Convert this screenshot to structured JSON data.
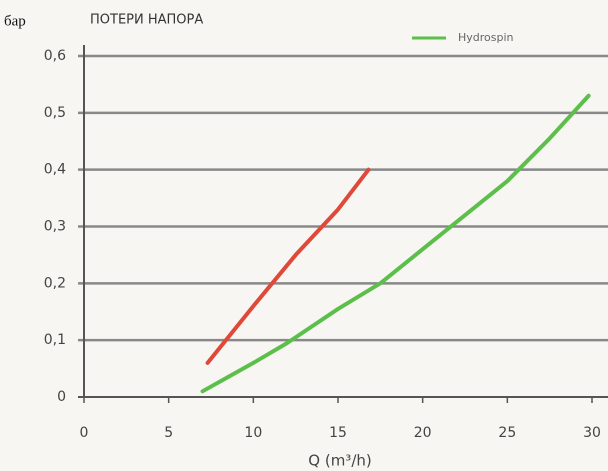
{
  "chart_data": {
    "type": "line",
    "title": "ПОТЕРИ НАПОРА",
    "ylabel": "бар",
    "xlabel": "Q  (m³/h)",
    "series": [
      {
        "color": "#e0483a",
        "x": [
          7.3,
          10,
          12.5,
          15,
          16.8
        ],
        "values": [
          0.06,
          0.16,
          0.25,
          0.33,
          0.4
        ]
      },
      {
        "name": "Hydrospin",
        "color": "#5cbf4a",
        "x": [
          7,
          10,
          12,
          15,
          17.5,
          20,
          22.5,
          25,
          27.5,
          29.8
        ],
        "values": [
          0.01,
          0.06,
          0.095,
          0.155,
          0.2,
          0.26,
          0.32,
          0.38,
          0.455,
          0.53
        ]
      }
    ],
    "xlim": [
      0,
      30
    ],
    "xticks": [
      0,
      5,
      10,
      15,
      20,
      25,
      30
    ],
    "ylim": [
      0,
      0.6
    ],
    "yticks": [
      0,
      {
        "value": 0.1,
        "label": "0,1"
      },
      {
        "value": 0.2,
        "label": "0,2"
      },
      {
        "value": 0.3,
        "label": "0,3"
      },
      {
        "value": 0.4,
        "label": "0,4"
      },
      {
        "value": 0.5,
        "label": "0,5"
      },
      {
        "value": 0.6,
        "label": "0,6"
      }
    ],
    "grid": true,
    "legend": "top-right"
  }
}
